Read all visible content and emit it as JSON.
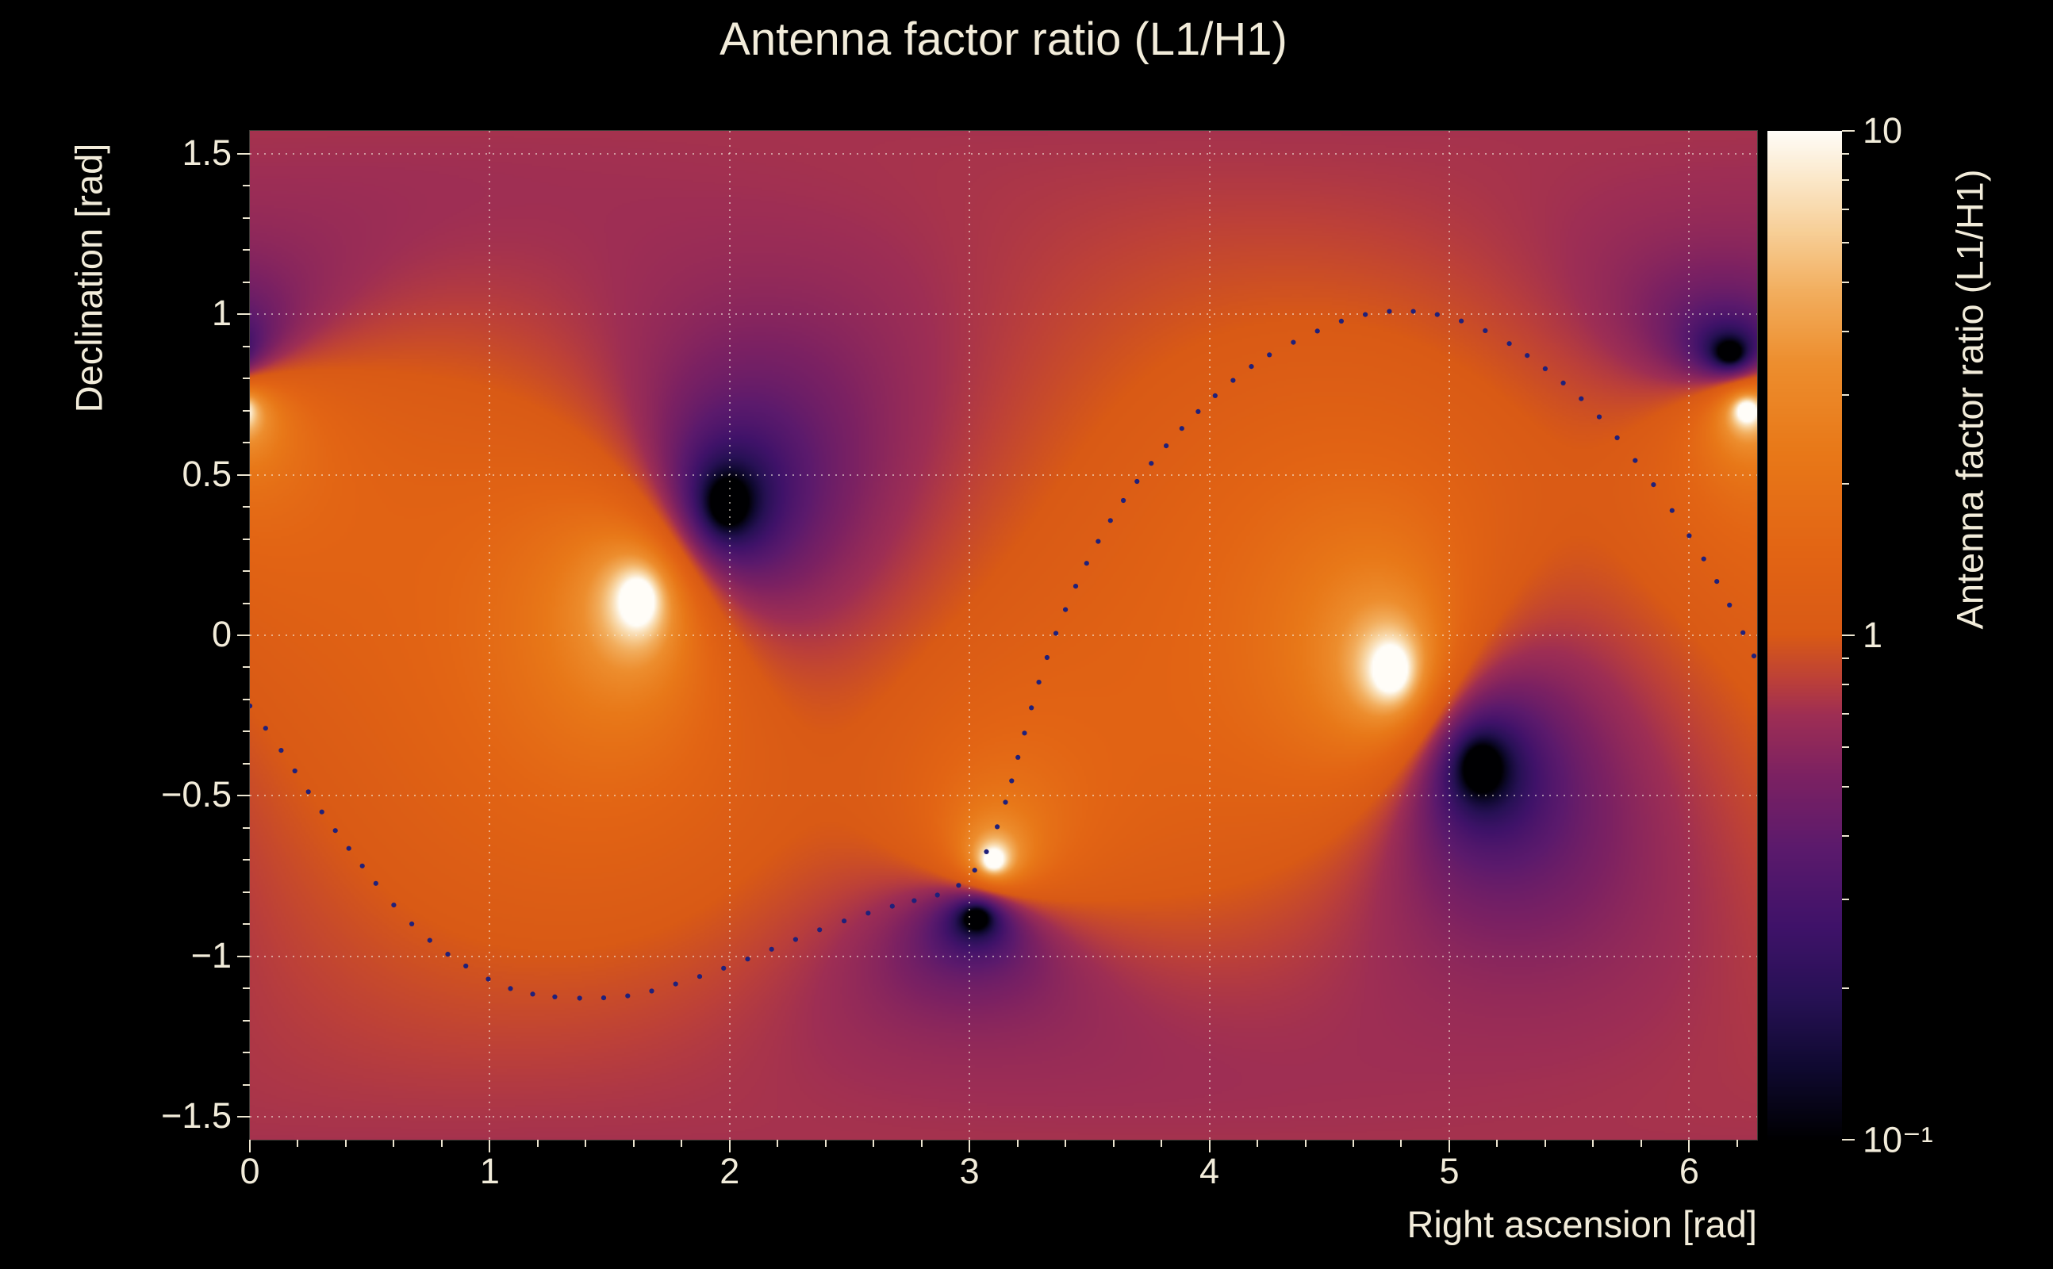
{
  "title": "Antenna factor ratio (L1/H1)",
  "colors": {
    "background": "#000000",
    "text": "#f2ecda",
    "tick": "#ece5d0",
    "grid": "#f6f0e2",
    "curve_dots": "#20207a"
  },
  "axes": {
    "x": {
      "label": "Right ascension [rad]",
      "min": 0,
      "max": 6.2832,
      "major_ticks": [
        0,
        1,
        2,
        3,
        4,
        5,
        6
      ],
      "major_labels": [
        "0",
        "1",
        "2",
        "3",
        "4",
        "5",
        "6"
      ],
      "minor_step": 0.2
    },
    "y": {
      "label": "Declination [rad]",
      "min": -1.5708,
      "max": 1.5708,
      "major_ticks": [
        1.5,
        1,
        0.5,
        0,
        -0.5,
        -1,
        -1.5
      ],
      "major_labels": [
        "1.5",
        "1",
        "0.5",
        "0",
        "−0.5",
        "−1",
        "−1.5"
      ],
      "minor_step": 0.1
    }
  },
  "colorbar": {
    "label": "Antenna factor ratio (L1/H1)",
    "scale": "log",
    "min": 0.1,
    "max": 10,
    "ticks": [
      {
        "value": 10,
        "label": "10"
      },
      {
        "value": 1,
        "label": "1"
      },
      {
        "value": 0.1,
        "label": "10⁻¹"
      }
    ]
  },
  "chart_data": {
    "type": "heatmap",
    "title": "Antenna factor ratio (L1/H1)",
    "xlabel": "Right ascension [rad]",
    "ylabel": "Declination [rad]",
    "x_range": [
      0,
      6.2832
    ],
    "y_range": [
      -1.5708,
      1.5708
    ],
    "z_label": "Antenna factor ratio (L1/H1)",
    "z_scale": "log",
    "z_range": [
      0.1,
      10
    ],
    "background_value": 1.0,
    "maxima_white_spots": [
      [
        1.62,
        0.11
      ],
      [
        4.76,
        -0.11
      ],
      [
        3.1,
        -0.7
      ],
      [
        6.24,
        0.7
      ]
    ],
    "minima_dark_spots": [
      [
        1.99,
        0.41
      ],
      [
        5.13,
        -0.41
      ],
      [
        3.03,
        -0.88
      ],
      [
        6.17,
        0.88
      ]
    ],
    "kernel": "log10(ratio) = 0.5*log10( prod(2-2cos d_min) / prod(2-2cos d_max) ), spherical distances, ra wraps mod 2pi",
    "contrast_gain": 1.25,
    "colormap_stops": [
      [
        0.0,
        "#000002"
      ],
      [
        0.07,
        "#0f0930"
      ],
      [
        0.14,
        "#271155"
      ],
      [
        0.21,
        "#3f1269"
      ],
      [
        0.29,
        "#5c1a6c"
      ],
      [
        0.36,
        "#7c2162"
      ],
      [
        0.42,
        "#9e2e54"
      ],
      [
        0.455,
        "#bc4039"
      ],
      [
        0.5,
        "#d95a15"
      ],
      [
        0.58,
        "#e26414"
      ],
      [
        0.68,
        "#e87818"
      ],
      [
        0.77,
        "#ed8e2e"
      ],
      [
        0.84,
        "#f2ae5e"
      ],
      [
        0.9,
        "#f7cf97"
      ],
      [
        0.955,
        "#fbe9cc"
      ],
      [
        1.0,
        "#fffdf8"
      ]
    ],
    "grid": {
      "x_lines": [
        1,
        2,
        3,
        4,
        5,
        6
      ],
      "y_lines": [
        -1.5,
        -1,
        -0.5,
        0,
        0.5,
        1,
        1.5
      ]
    },
    "overlay_curve": {
      "name": "dotted-sky-track",
      "style": "dotted",
      "color": "#20207a",
      "dot_radius": 3.1,
      "dot_spacing": 27,
      "points": [
        [
          0.0,
          -0.22
        ],
        [
          0.15,
          -0.38
        ],
        [
          0.3,
          -0.55
        ],
        [
          0.45,
          -0.7
        ],
        [
          0.6,
          -0.84
        ],
        [
          0.75,
          -0.95
        ],
        [
          0.9,
          -1.03
        ],
        [
          1.05,
          -1.09
        ],
        [
          1.2,
          -1.12
        ],
        [
          1.4,
          -1.13
        ],
        [
          1.6,
          -1.12
        ],
        [
          1.8,
          -1.08
        ],
        [
          2.0,
          -1.03
        ],
        [
          2.2,
          -0.97
        ],
        [
          2.4,
          -0.91
        ],
        [
          2.6,
          -0.86
        ],
        [
          2.75,
          -0.83
        ],
        [
          2.9,
          -0.8
        ],
        [
          3.0,
          -0.75
        ],
        [
          3.08,
          -0.66
        ],
        [
          3.15,
          -0.52
        ],
        [
          3.22,
          -0.33
        ],
        [
          3.3,
          -0.12
        ],
        [
          3.4,
          0.08
        ],
        [
          3.52,
          0.27
        ],
        [
          3.66,
          0.44
        ],
        [
          3.82,
          0.59
        ],
        [
          4.0,
          0.73
        ],
        [
          4.2,
          0.85
        ],
        [
          4.4,
          0.93
        ],
        [
          4.6,
          0.99
        ],
        [
          4.8,
          1.01
        ],
        [
          5.0,
          0.99
        ],
        [
          5.2,
          0.93
        ],
        [
          5.4,
          0.83
        ],
        [
          5.6,
          0.7
        ],
        [
          5.8,
          0.52
        ],
        [
          6.0,
          0.31
        ],
        [
          6.15,
          0.12
        ],
        [
          6.28,
          -0.08
        ]
      ]
    }
  }
}
